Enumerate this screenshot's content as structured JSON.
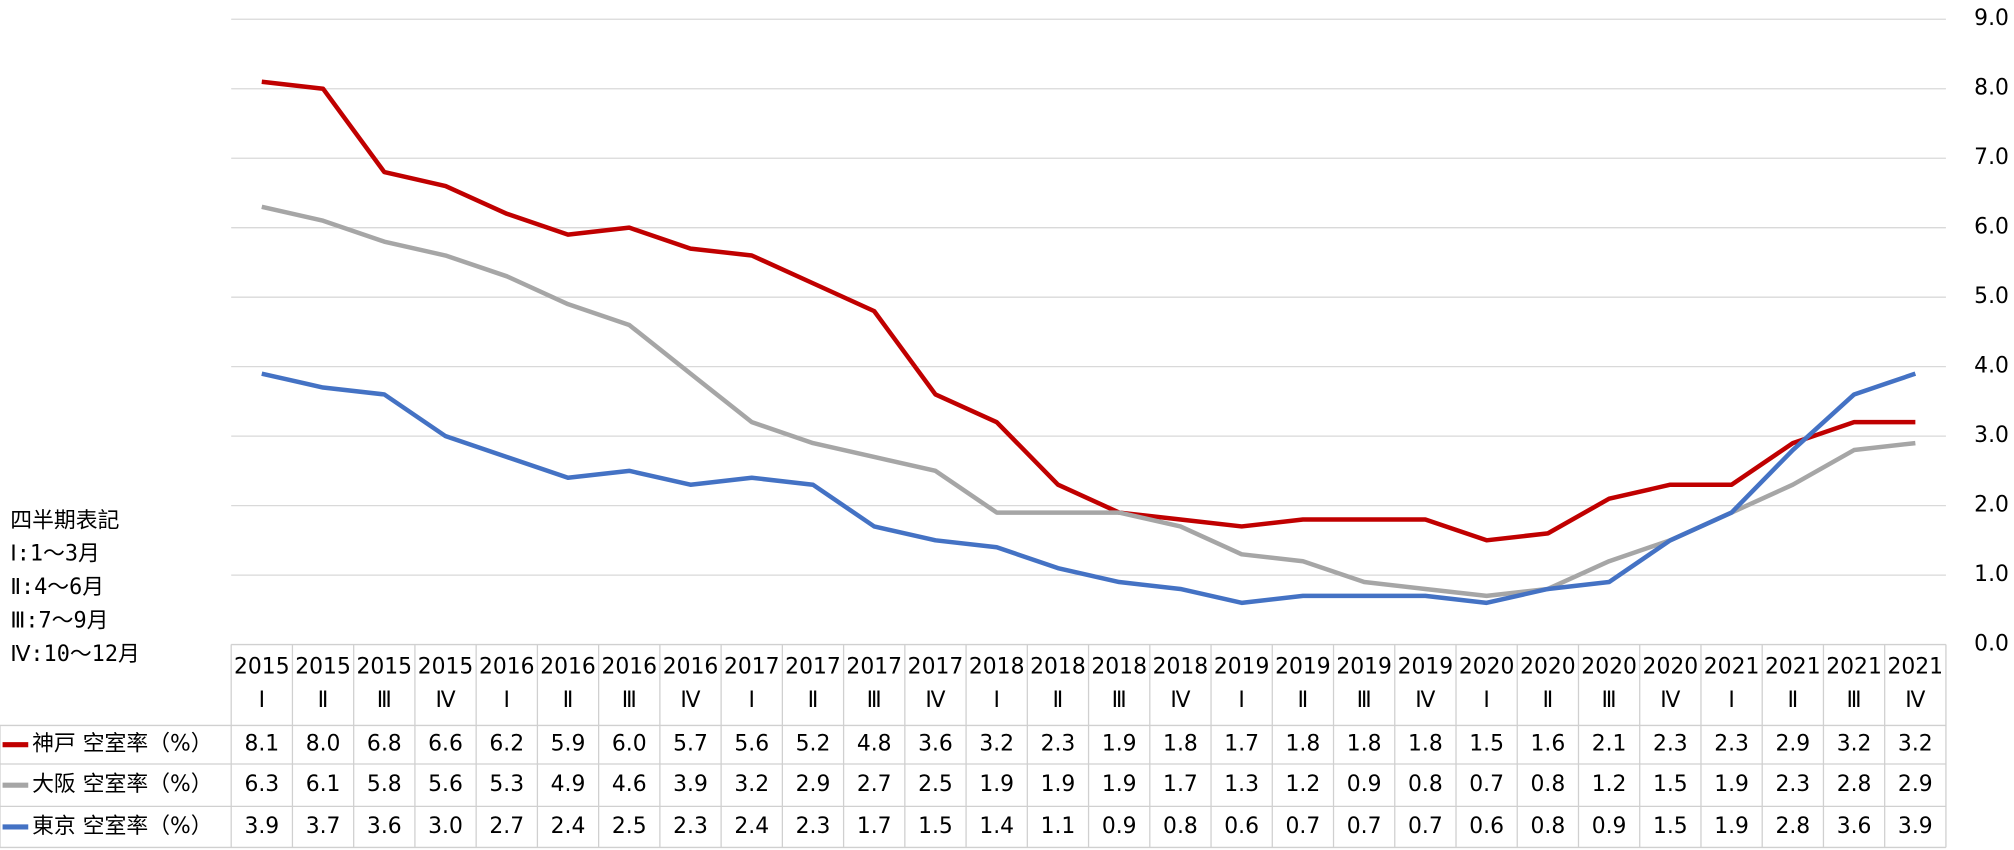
{
  "chart_data": {
    "type": "line",
    "categories": [
      [
        "2015",
        "Ⅰ"
      ],
      [
        "2015",
        "Ⅱ"
      ],
      [
        "2015",
        "Ⅲ"
      ],
      [
        "2015",
        "Ⅳ"
      ],
      [
        "2016",
        "Ⅰ"
      ],
      [
        "2016",
        "Ⅱ"
      ],
      [
        "2016",
        "Ⅲ"
      ],
      [
        "2016",
        "Ⅳ"
      ],
      [
        "2017",
        "Ⅰ"
      ],
      [
        "2017",
        "Ⅱ"
      ],
      [
        "2017",
        "Ⅲ"
      ],
      [
        "2017",
        "Ⅳ"
      ],
      [
        "2018",
        "Ⅰ"
      ],
      [
        "2018",
        "Ⅱ"
      ],
      [
        "2018",
        "Ⅲ"
      ],
      [
        "2018",
        "Ⅳ"
      ],
      [
        "2019",
        "Ⅰ"
      ],
      [
        "2019",
        "Ⅱ"
      ],
      [
        "2019",
        "Ⅲ"
      ],
      [
        "2019",
        "Ⅳ"
      ],
      [
        "2020",
        "Ⅰ"
      ],
      [
        "2020",
        "Ⅱ"
      ],
      [
        "2020",
        "Ⅲ"
      ],
      [
        "2020",
        "Ⅳ"
      ],
      [
        "2021",
        "Ⅰ"
      ],
      [
        "2021",
        "Ⅱ"
      ],
      [
        "2021",
        "Ⅲ"
      ],
      [
        "2021",
        "Ⅳ"
      ]
    ],
    "series": [
      {
        "name": "神戸 空室率（%）",
        "color": "#c00000",
        "values": [
          8.1,
          8.0,
          6.8,
          6.6,
          6.2,
          5.9,
          6.0,
          5.7,
          5.6,
          5.2,
          4.8,
          3.6,
          3.2,
          2.3,
          1.9,
          1.8,
          1.7,
          1.8,
          1.8,
          1.8,
          1.5,
          1.6,
          2.1,
          2.3,
          2.3,
          2.9,
          3.2,
          3.2
        ],
        "value_labels": [
          "8.1",
          "8.0",
          "6.8",
          "6.6",
          "6.2",
          "5.9",
          "6.0",
          "5.7",
          "5.6",
          "5.2",
          "4.8",
          "3.6",
          "3.2",
          "2.3",
          "1.9",
          "1.8",
          "1.7",
          "1.8",
          "1.8",
          "1.8",
          "1.5",
          "1.6",
          "2.1",
          "2.3",
          "2.3",
          "2.9",
          "3.2",
          "3.2"
        ]
      },
      {
        "name": "大阪 空室率（%）",
        "color": "#a6a6a6",
        "values": [
          6.3,
          6.1,
          5.8,
          5.6,
          5.3,
          4.9,
          4.6,
          3.9,
          3.2,
          2.9,
          2.7,
          2.5,
          1.9,
          1.9,
          1.9,
          1.7,
          1.3,
          1.2,
          0.9,
          0.8,
          0.7,
          0.8,
          1.2,
          1.5,
          1.9,
          2.3,
          2.8,
          2.9
        ],
        "value_labels": [
          "6.3",
          "6.1",
          "5.8",
          "5.6",
          "5.3",
          "4.9",
          "4.6",
          "3.9",
          "3.2",
          "2.9",
          "2.7",
          "2.5",
          "1.9",
          "1.9",
          "1.9",
          "1.7",
          "1.3",
          "1.2",
          "0.9",
          "0.8",
          "0.7",
          "0.8",
          "1.2",
          "1.5",
          "1.9",
          "2.3",
          "2.8",
          "2.9"
        ]
      },
      {
        "name": "東京 空室率（%）",
        "color": "#4472c4",
        "values": [
          3.9,
          3.7,
          3.6,
          3.0,
          2.7,
          2.4,
          2.5,
          2.3,
          2.4,
          2.3,
          1.7,
          1.5,
          1.4,
          1.1,
          0.9,
          0.8,
          0.6,
          0.7,
          0.7,
          0.7,
          0.6,
          0.8,
          0.9,
          1.5,
          1.9,
          2.8,
          3.6,
          3.9
        ],
        "value_labels": [
          "3.9",
          "3.7",
          "3.6",
          "3.0",
          "2.7",
          "2.4",
          "2.5",
          "2.3",
          "2.4",
          "2.3",
          "1.7",
          "1.5",
          "1.4",
          "1.1",
          "0.9",
          "0.8",
          "0.6",
          "0.7",
          "0.7",
          "0.7",
          "0.6",
          "0.8",
          "0.9",
          "1.5",
          "1.9",
          "2.8",
          "3.6",
          "3.9"
        ]
      }
    ],
    "ylim": [
      0,
      9
    ],
    "yticks": [
      {
        "value": 0,
        "label": "0.0"
      },
      {
        "value": 1,
        "label": "1.0"
      },
      {
        "value": 2,
        "label": "2.0"
      },
      {
        "value": 3,
        "label": "3.0"
      },
      {
        "value": 4,
        "label": "4.0"
      },
      {
        "value": 5,
        "label": "5.0"
      },
      {
        "value": 6,
        "label": "6.0"
      },
      {
        "value": 7,
        "label": "7.0"
      },
      {
        "value": 8,
        "label": "8.0"
      },
      {
        "value": 9,
        "label": "9.0"
      }
    ],
    "grid": true,
    "annotation": [
      "四半期表記",
      "Ⅰ:1～3月",
      "Ⅱ:4～6月",
      "Ⅲ:7～9月",
      "Ⅳ:10～12月"
    ]
  }
}
